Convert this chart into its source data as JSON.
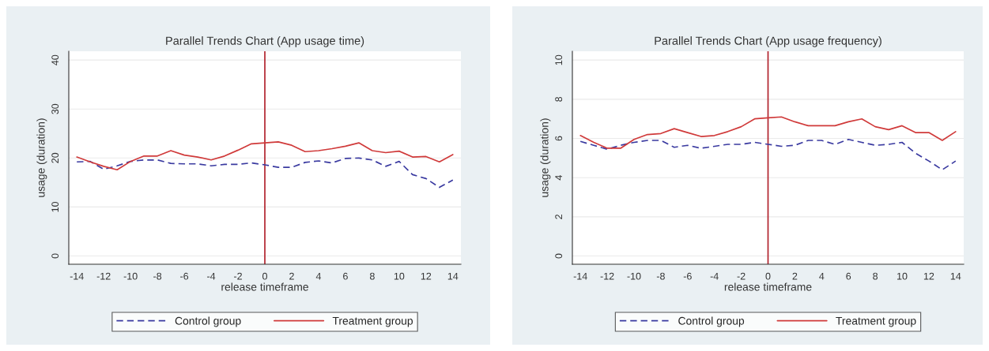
{
  "chart_data": [
    {
      "type": "line",
      "title": "Parallel Trends Chart (App usage time)",
      "xlabel": "release timeframe",
      "ylabel": "usage (duration)",
      "x": [
        -14,
        -13,
        -12,
        -11,
        -10,
        -9,
        -8,
        -7,
        -6,
        -5,
        -4,
        -3,
        -2,
        -1,
        0,
        1,
        2,
        3,
        4,
        5,
        6,
        7,
        8,
        9,
        10,
        11,
        12,
        13,
        14
      ],
      "series": [
        {
          "name": "Control group",
          "color": "#3a3aa0",
          "line_style": "dashed",
          "values": [
            19.2,
            19.3,
            17.7,
            18.4,
            19.3,
            19.6,
            19.6,
            18.9,
            18.8,
            18.8,
            18.4,
            18.7,
            18.7,
            19.0,
            18.6,
            18.1,
            18.1,
            19.1,
            19.4,
            19.0,
            19.9,
            20.0,
            19.6,
            18.3,
            19.3,
            16.6,
            15.8,
            14.0,
            15.5
          ]
        },
        {
          "name": "Treatment group",
          "color": "#d03a3a",
          "line_style": "solid",
          "values": [
            20.2,
            19.2,
            18.3,
            17.6,
            19.3,
            20.4,
            20.4,
            21.5,
            20.6,
            20.2,
            19.6,
            20.4,
            21.6,
            22.9,
            23.1,
            23.3,
            22.6,
            21.3,
            21.5,
            21.9,
            22.4,
            23.1,
            21.5,
            21.1,
            21.4,
            20.2,
            20.3,
            19.2,
            20.7
          ]
        }
      ],
      "xlim": [
        -14.6,
        14.6
      ],
      "ylim": [
        -1.7,
        41.8
      ],
      "xticks": [
        -14,
        -12,
        -10,
        -8,
        -6,
        -4,
        -2,
        0,
        2,
        4,
        6,
        8,
        10,
        12,
        14
      ],
      "yticks": [
        0,
        10,
        20,
        30,
        40
      ],
      "ref_lines": [
        {
          "axis": "x",
          "value": 0,
          "color": "#b0202a"
        }
      ],
      "grid": "y",
      "legend": "bottom",
      "marker": "none"
    },
    {
      "type": "line",
      "title": "Parallel Trends Chart (App usage frequency)",
      "xlabel": "release timeframe",
      "ylabel": "usage (duration)",
      "x": [
        -14,
        -13,
        -12,
        -11,
        -10,
        -9,
        -8,
        -7,
        -6,
        -5,
        -4,
        -3,
        -2,
        -1,
        0,
        1,
        2,
        3,
        4,
        5,
        6,
        7,
        8,
        9,
        10,
        11,
        12,
        13,
        14
      ],
      "series": [
        {
          "name": "Control group",
          "color": "#3a3aa0",
          "line_style": "dashed",
          "values": [
            5.85,
            5.65,
            5.45,
            5.65,
            5.8,
            5.9,
            5.9,
            5.55,
            5.65,
            5.5,
            5.6,
            5.7,
            5.7,
            5.8,
            5.7,
            5.6,
            5.65,
            5.9,
            5.9,
            5.7,
            5.95,
            5.8,
            5.65,
            5.7,
            5.8,
            5.25,
            4.85,
            4.4,
            4.85
          ]
        },
        {
          "name": "Treatment group",
          "color": "#d03a3a",
          "line_style": "solid",
          "values": [
            6.15,
            5.8,
            5.5,
            5.5,
            5.95,
            6.2,
            6.25,
            6.5,
            6.3,
            6.1,
            6.15,
            6.35,
            6.6,
            7.0,
            7.05,
            7.1,
            6.85,
            6.65,
            6.65,
            6.65,
            6.85,
            7.0,
            6.6,
            6.45,
            6.65,
            6.3,
            6.3,
            5.9,
            6.35
          ]
        }
      ],
      "xlim": [
        -14.6,
        14.6
      ],
      "ylim": [
        -0.42,
        10.45
      ],
      "xticks": [
        -14,
        -12,
        -10,
        -8,
        -6,
        -4,
        -2,
        0,
        2,
        4,
        6,
        8,
        10,
        12,
        14
      ],
      "yticks": [
        0,
        2,
        4,
        6,
        8,
        10
      ],
      "ref_lines": [
        {
          "axis": "x",
          "value": 0,
          "color": "#b0202a"
        }
      ],
      "grid": "y",
      "legend": "bottom",
      "marker": "none"
    }
  ]
}
